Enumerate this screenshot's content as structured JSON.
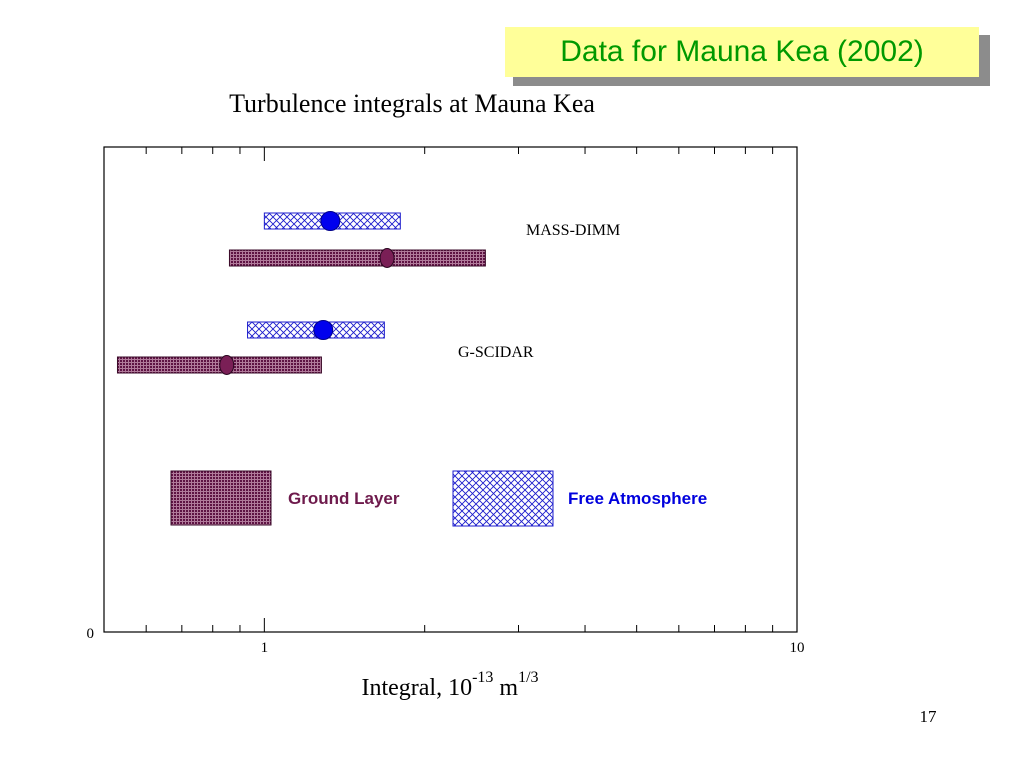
{
  "slide": {
    "title": "Data for Mauna Kea (2002)",
    "page_number": "17"
  },
  "colors": {
    "title_text": "#009900",
    "title_bg": "#ffff99",
    "ground_layer": "#7a1f56",
    "free_atmosphere": "#0000ee",
    "free_atmosphere_label": "#0000dd",
    "ground_layer_label": "#6e1a4c"
  },
  "chart_data": {
    "type": "range",
    "title": "Turbulence integrals at Mauna Kea",
    "xlabel": {
      "base": "Integral, 10",
      "exponent": "-13",
      "unit": " m",
      "unit_exponent": "1/3"
    },
    "x_scale": "log",
    "xlim": [
      0.5,
      10
    ],
    "x_tick_labels": [
      "1",
      "10"
    ],
    "y_tick_labels": [
      "0"
    ],
    "grid": false,
    "groups": [
      {
        "name": "MASS-DIMM",
        "series": [
          {
            "name": "Free Atmosphere",
            "low": 1.0,
            "high": 1.8,
            "value": 1.33
          },
          {
            "name": "Ground Layer",
            "low": 0.86,
            "high": 2.6,
            "value": 1.7
          }
        ]
      },
      {
        "name": "G-SCIDAR",
        "series": [
          {
            "name": "Free Atmosphere",
            "low": 0.93,
            "high": 1.68,
            "value": 1.29
          },
          {
            "name": "Ground Layer",
            "low": 0.53,
            "high": 1.28,
            "value": 0.85
          }
        ]
      }
    ],
    "legend": [
      {
        "name": "Ground Layer",
        "pattern": "dense-dots"
      },
      {
        "name": "Free Atmosphere",
        "pattern": "crosshatch"
      }
    ],
    "legend_placement": "lower-center"
  }
}
